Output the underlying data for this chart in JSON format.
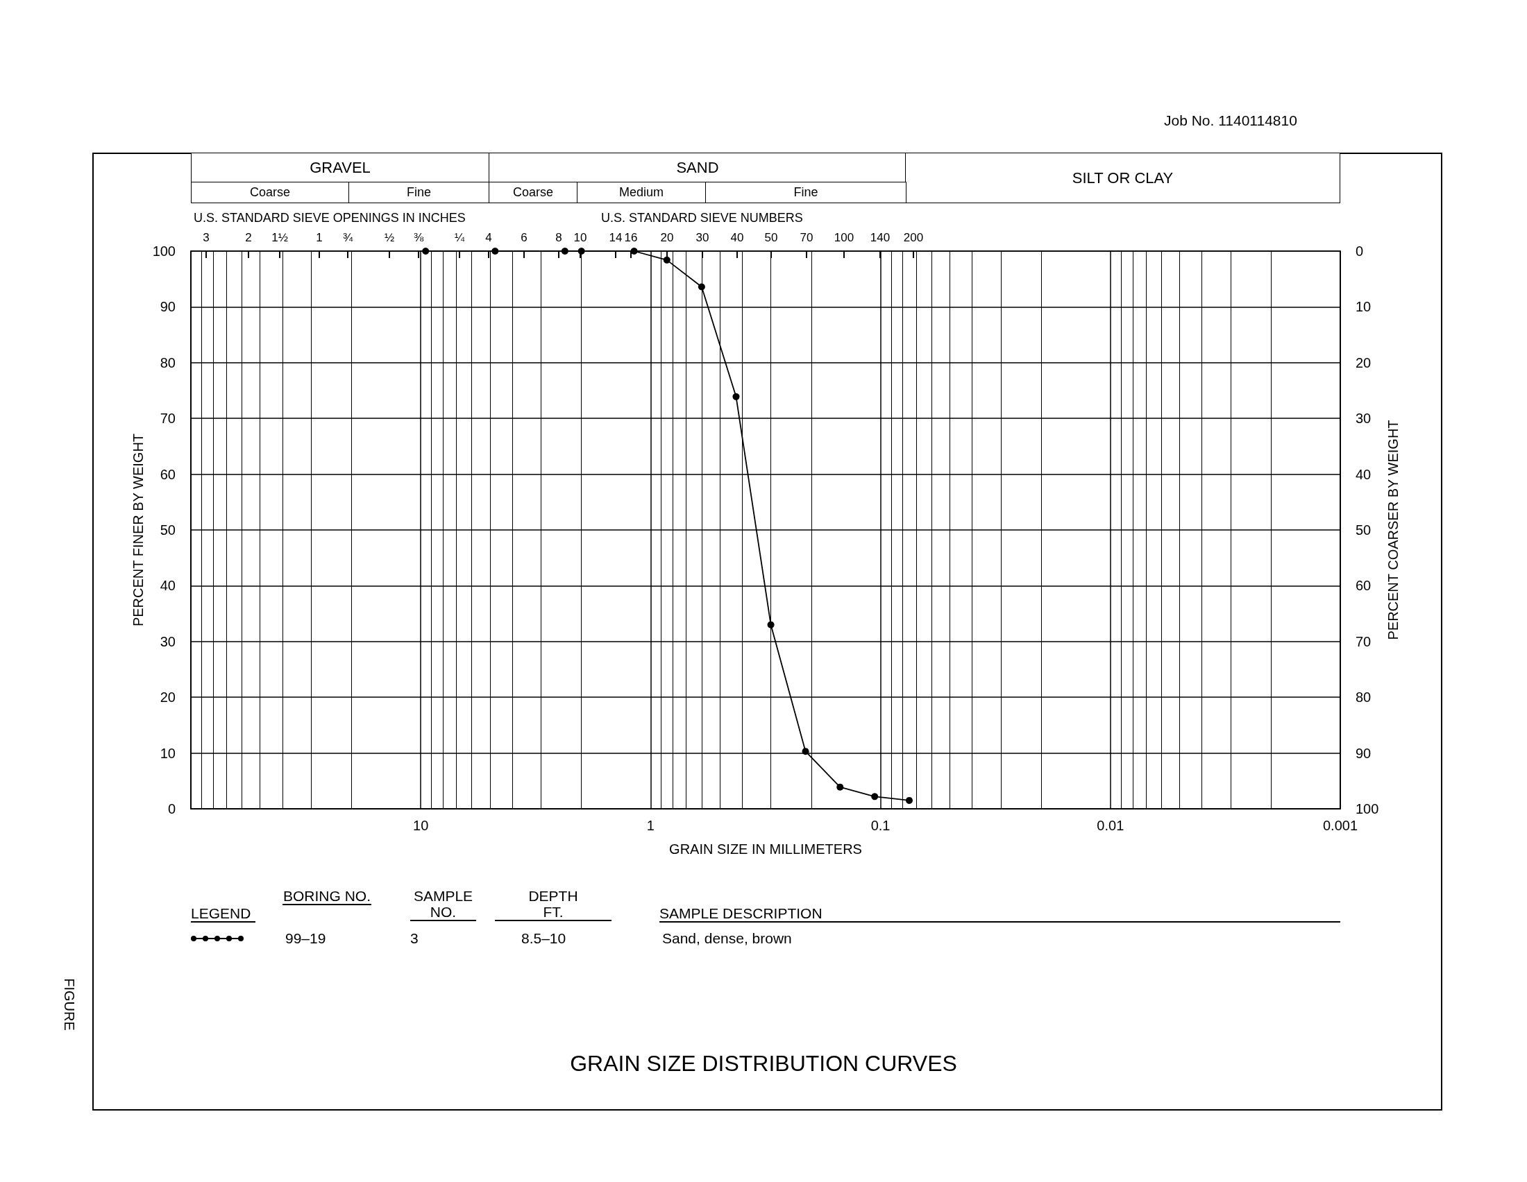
{
  "chart_data": {
    "type": "line",
    "title": "GRAIN SIZE DISTRIBUTION CURVES",
    "xlabel": "GRAIN SIZE IN MILLIMETERS",
    "ylabel": "PERCENT FINER BY WEIGHT",
    "y2label": "PERCENT COARSER BY WEIGHT",
    "log": "x",
    "xlim": [
      100,
      0.001
    ],
    "xticks": [
      {
        "value": 100,
        "label": null
      },
      10,
      1,
      0.1,
      0.01,
      0.001
    ],
    "ylim": [
      0,
      100
    ],
    "yticks": [
      0,
      10,
      20,
      30,
      40,
      50,
      60,
      70,
      80,
      90,
      100
    ],
    "y2lim": [
      100,
      0
    ],
    "y2ticks": [
      0,
      10,
      20,
      30,
      40,
      50,
      60,
      70,
      80,
      90,
      100
    ],
    "grid": true,
    "marker": "circle",
    "line_style": "solid",
    "series": [
      {
        "color": "#000000",
        "x": [
          9.525,
          4.75,
          2.36,
          2.0,
          1.18,
          0.85,
          0.6,
          0.425,
          0.3,
          0.212,
          0.15,
          0.106,
          0.075
        ],
        "values": [
          100,
          100,
          100,
          100,
          100,
          98.4,
          93.6,
          73.9,
          33.0,
          10.3,
          3.9,
          2.2,
          1.5
        ]
      }
    ],
    "annotations": [
      "Job No. 1140114810",
      "FIGURE",
      "GRAVEL",
      "SAND",
      "SILT OR CLAY",
      "Coarse",
      "Fine",
      "Coarse",
      "Medium",
      "Fine",
      "U.S. STANDARD SIEVE OPENINGS IN INCHES",
      "U.S. STANDARD SIEVE NUMBERS",
      "LEGEND",
      "BORING NO.",
      "SAMPLE NO.",
      "DEPTH FT.",
      "SAMPLE DESCRIPTION",
      "99–19",
      "3",
      "8.5–10",
      "Sand, dense, brown",
      "3",
      "2",
      "1½",
      "1",
      "¾",
      "½",
      "⅜",
      "¼",
      "4",
      "6",
      "8",
      "10",
      "14",
      "16",
      "20",
      "30",
      "40",
      "50",
      "70",
      "100",
      "140",
      "200"
    ]
  }
}
